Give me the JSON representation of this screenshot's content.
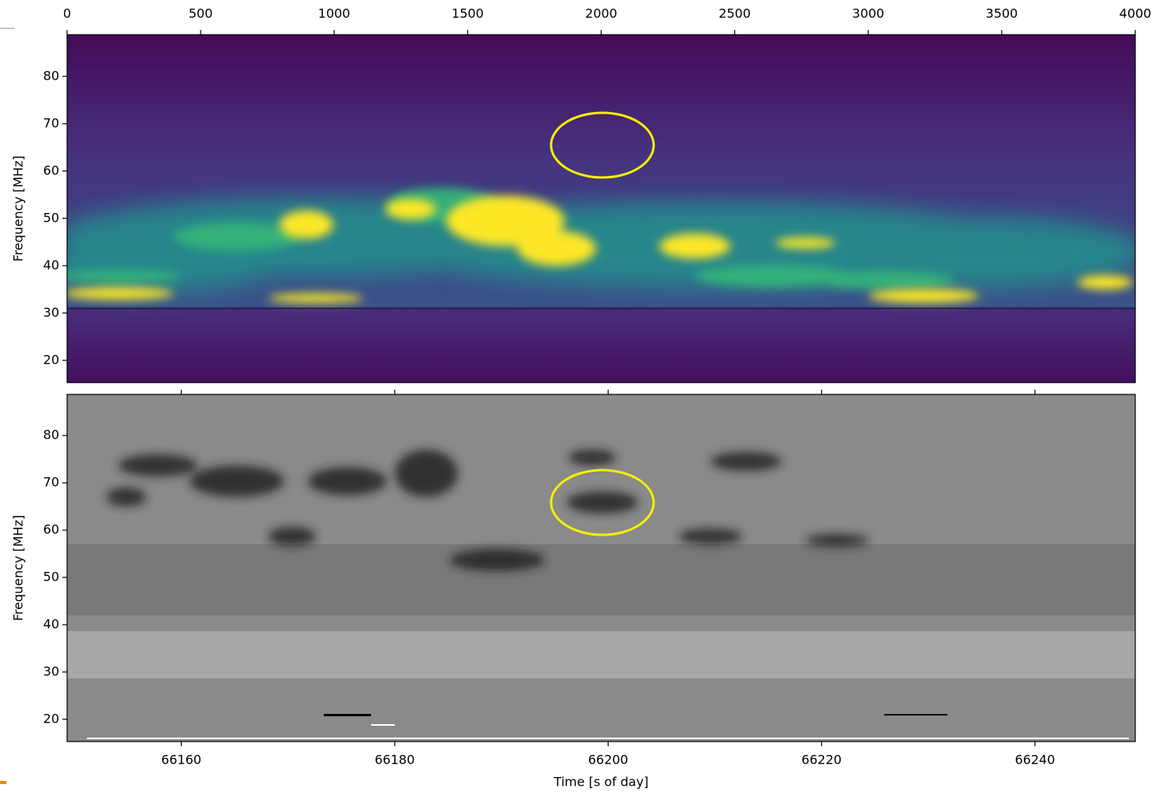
{
  "chart_data": [
    {
      "type": "heatmap",
      "cmap": "viridis",
      "ylabel": "Frequency [MHz]",
      "xlim": [
        0,
        4000
      ],
      "xticks": [
        0,
        500,
        1000,
        1500,
        2000,
        2500,
        3000,
        3500,
        4000
      ],
      "ylim": [
        15.3,
        88.8
      ],
      "yticks": [
        20,
        30,
        40,
        50,
        60,
        70,
        80
      ]
    },
    {
      "type": "heatmap",
      "cmap": "gray",
      "ylabel": "Frequency [MHz]",
      "xlabel": "Time [s of day]",
      "xlim": [
        66149.3,
        66249.4
      ],
      "xticks": [
        66160,
        66180,
        66200,
        66220,
        66240
      ],
      "ylim": [
        15.3,
        88.7
      ],
      "yticks": [
        20,
        30,
        40,
        50,
        60,
        70,
        80
      ]
    }
  ]
}
